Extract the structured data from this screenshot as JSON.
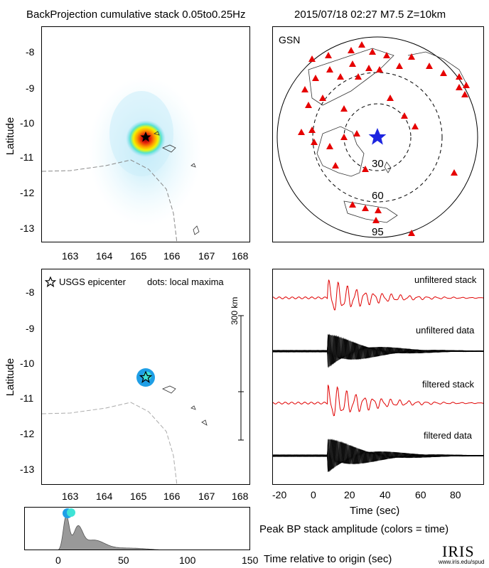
{
  "header": {
    "title": "BackProjection cumulative stack 0.05to0.25Hz",
    "event": "2015/07/18 02:27  M7.5  Z=10km"
  },
  "chart_data": [
    {
      "id": "cumulative-map",
      "type": "heatmap",
      "ylabel": "Latitude",
      "xticks": [
        "163",
        "164",
        "165",
        "166",
        "167",
        "168"
      ],
      "yticks": [
        "-8",
        "-9",
        "-10",
        "-11",
        "-12",
        "-13"
      ],
      "xlim": [
        162.2,
        168.2
      ],
      "ylim": [
        -13.35,
        -7.5
      ],
      "epicenter": {
        "lon": 165.15,
        "lat": -10.4
      },
      "peak": {
        "lon": 165.15,
        "lat": -10.45
      }
    },
    {
      "id": "gsn-station-map",
      "type": "scatter",
      "network": "GSN",
      "ring_labels": [
        "30",
        "60",
        "95"
      ],
      "ring_distances_deg": [
        30,
        60,
        95
      ]
    },
    {
      "id": "local-maxima-map",
      "type": "scatter",
      "ylabel": "Latitude",
      "legend_epicenter": "USGS epicenter",
      "legend_dots": "dots: local maxima",
      "scale_label": "300 km",
      "xticks": [
        "163",
        "164",
        "165",
        "166",
        "167",
        "168"
      ],
      "yticks": [
        "-8",
        "-9",
        "-10",
        "-11",
        "-12",
        "-13"
      ],
      "xlim": [
        162.2,
        168.2
      ],
      "ylim": [
        -13.35,
        -7.5
      ],
      "epicenter": {
        "lon": 165.2,
        "lat": -10.4
      }
    },
    {
      "id": "seismograms",
      "type": "line",
      "xlabel": "Time (sec)",
      "xticks": [
        "-20",
        "0",
        "20",
        "40",
        "60",
        "80"
      ],
      "xlim": [
        -25,
        95
      ],
      "traces": [
        {
          "label": "unfiltered stack",
          "color": "#e00000"
        },
        {
          "label": "unfiltered data",
          "color": "#000000"
        },
        {
          "label": "filtered stack",
          "color": "#e00000"
        },
        {
          "label": "filtered data",
          "color": "#000000"
        }
      ]
    },
    {
      "id": "peak-amplitude",
      "type": "area",
      "title": "Peak BP stack amplitude (colors = time)",
      "xlabel": "Time relative to origin (sec)",
      "xticks": [
        "0",
        "50",
        "100",
        "150"
      ],
      "xlim": [
        -25,
        150
      ],
      "peak_time_sec": 7
    }
  ],
  "footer": {
    "logo_text": "IRIS",
    "logo_url": "www.iris.edu/spud"
  }
}
